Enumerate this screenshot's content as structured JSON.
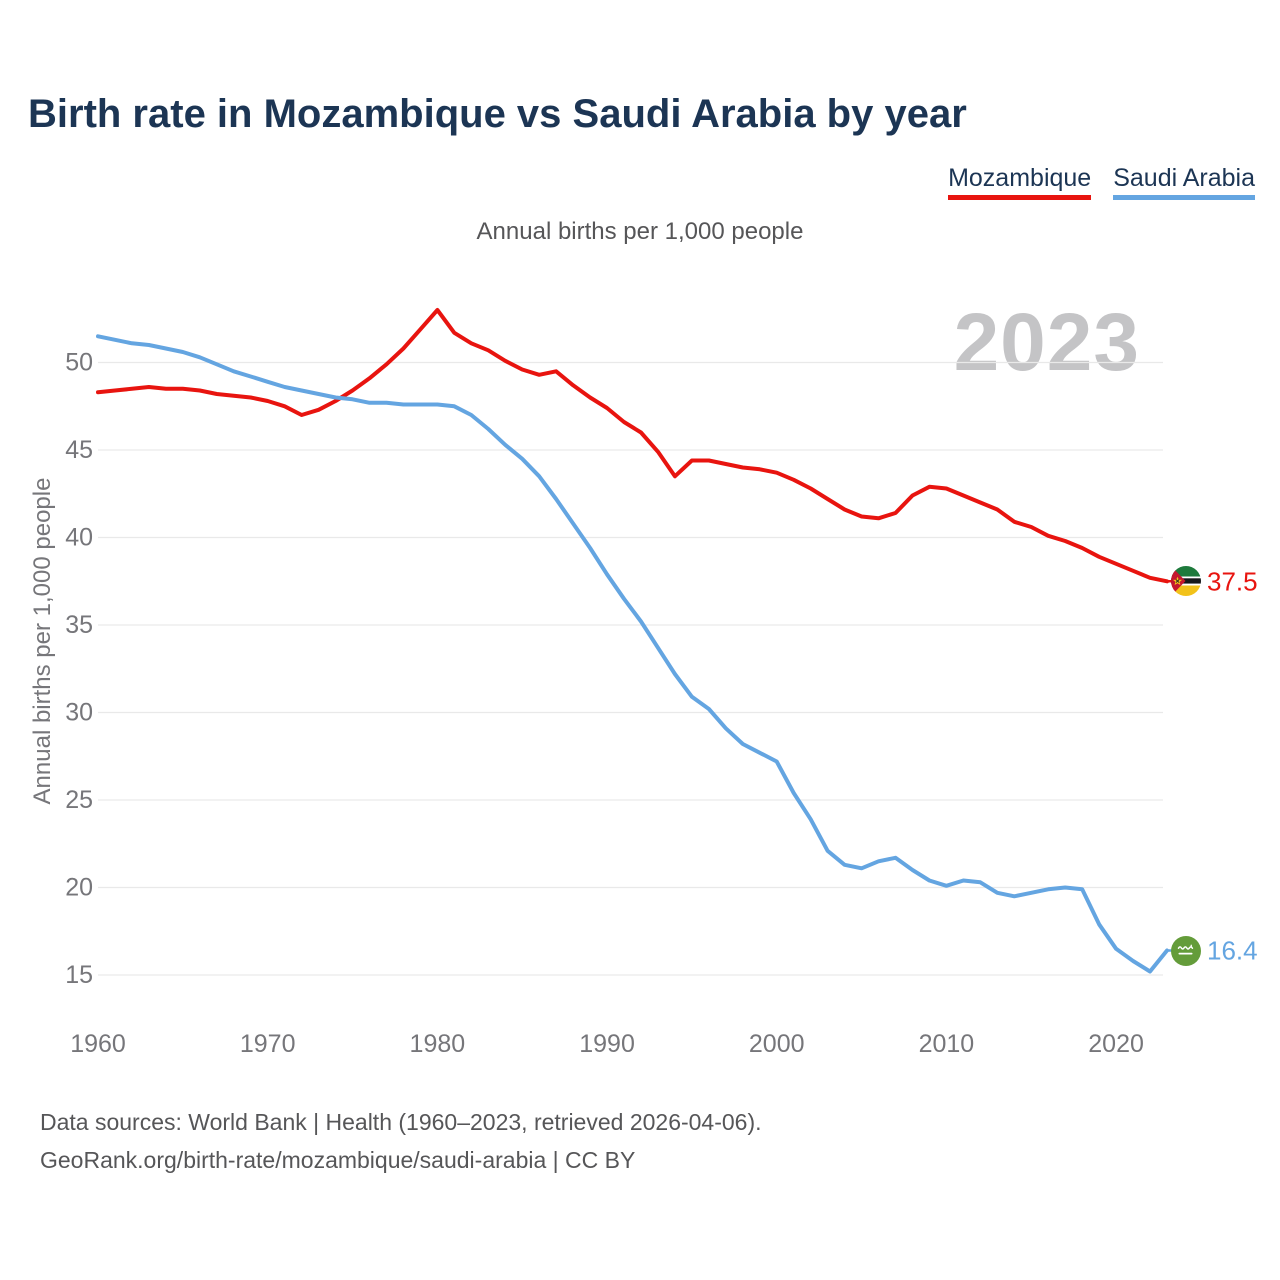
{
  "page": {
    "title": "Birth rate in Mozambique vs Saudi Arabia by year",
    "subtitle": "Annual births per 1,000 people",
    "watermark_year": "2023",
    "footer_line1": "Data sources: World Bank | Health (1960–2023, retrieved 2026-04-06).",
    "footer_line2": "GeoRank.org/birth-rate/mozambique/saudi-arabia | CC BY"
  },
  "legend": [
    {
      "label": "Mozambique",
      "color": "#e8140f"
    },
    {
      "label": "Saudi Arabia",
      "color": "#64a5e1"
    }
  ],
  "colors": {
    "mozambique_red": "#e8140f",
    "saudi_blue": "#64a5e1",
    "title_navy": "#1c3554",
    "axis_gray": "#76767a",
    "muted_gray": "#565658",
    "gridline_gray": "#e9e9e9",
    "watermark_gray": "#c4c4c6"
  },
  "chart_data": {
    "type": "line",
    "title": "Birth rate in Mozambique vs Saudi Arabia by year",
    "subtitle": "Annual births per 1,000 people",
    "xlabel": "",
    "ylabel": "Annual births per 1,000 people",
    "grid": "horizontal",
    "legend_position": "top-right",
    "xlim": [
      1960,
      2023
    ],
    "ylim": [
      14,
      54
    ],
    "xticks": [
      1960,
      1970,
      1980,
      1990,
      2000,
      2010,
      2020
    ],
    "yticks": [
      15,
      20,
      25,
      30,
      35,
      40,
      45,
      50
    ],
    "x": [
      1960,
      1961,
      1962,
      1963,
      1964,
      1965,
      1966,
      1967,
      1968,
      1969,
      1970,
      1971,
      1972,
      1973,
      1974,
      1975,
      1976,
      1977,
      1978,
      1979,
      1980,
      1981,
      1982,
      1983,
      1984,
      1985,
      1986,
      1987,
      1988,
      1989,
      1990,
      1991,
      1992,
      1993,
      1994,
      1995,
      1996,
      1997,
      1998,
      1999,
      2000,
      2001,
      2002,
      2003,
      2004,
      2005,
      2006,
      2007,
      2008,
      2009,
      2010,
      2011,
      2012,
      2013,
      2014,
      2015,
      2016,
      2017,
      2018,
      2019,
      2020,
      2021,
      2022,
      2023
    ],
    "series": [
      {
        "name": "Mozambique",
        "color": "#e8140f",
        "end_label": "37.5",
        "end_value": 37.5,
        "flag": "mozambique",
        "values": [
          48.3,
          48.4,
          48.5,
          48.6,
          48.5,
          48.5,
          48.4,
          48.2,
          48.1,
          48.0,
          47.8,
          47.5,
          47.0,
          47.3,
          47.8,
          48.4,
          49.1,
          49.9,
          50.8,
          51.9,
          53.0,
          51.7,
          51.1,
          50.7,
          50.1,
          49.6,
          49.3,
          49.5,
          48.7,
          48.0,
          47.4,
          46.6,
          46.0,
          44.9,
          43.5,
          44.4,
          44.4,
          44.2,
          44.0,
          43.9,
          43.7,
          43.3,
          42.8,
          42.2,
          41.6,
          41.2,
          41.1,
          41.4,
          42.4,
          42.9,
          42.8,
          42.4,
          42.0,
          41.6,
          40.9,
          40.6,
          40.1,
          39.8,
          39.4,
          38.9,
          38.5,
          38.1,
          37.7,
          37.5
        ]
      },
      {
        "name": "Saudi Arabia",
        "color": "#64a5e1",
        "end_label": "16.4",
        "end_value": 16.4,
        "flag": "saudi-arabia",
        "values": [
          51.5,
          51.3,
          51.1,
          51.0,
          50.8,
          50.6,
          50.3,
          49.9,
          49.5,
          49.2,
          48.9,
          48.6,
          48.4,
          48.2,
          48.0,
          47.9,
          47.7,
          47.7,
          47.6,
          47.6,
          47.6,
          47.5,
          47.0,
          46.2,
          45.3,
          44.5,
          43.5,
          42.2,
          40.8,
          39.4,
          37.9,
          36.5,
          35.2,
          33.7,
          32.2,
          30.9,
          30.2,
          29.1,
          28.2,
          27.7,
          27.2,
          25.4,
          23.9,
          22.1,
          21.3,
          21.1,
          21.5,
          21.7,
          21.0,
          20.4,
          20.1,
          20.4,
          20.3,
          19.7,
          19.5,
          19.7,
          19.9,
          20.0,
          19.9,
          17.9,
          16.5,
          15.8,
          15.2,
          16.4
        ]
      }
    ]
  }
}
